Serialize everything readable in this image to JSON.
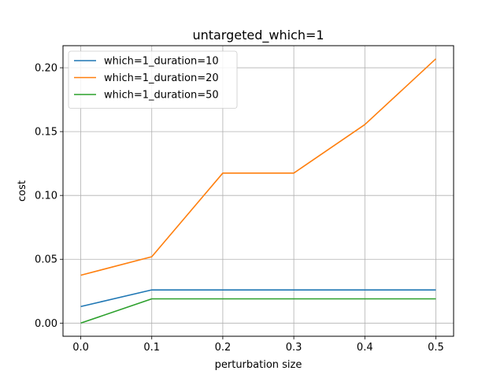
{
  "chart_data": {
    "type": "line",
    "title": "untargeted_which=1",
    "xlabel": "perturbation size",
    "ylabel": "cost",
    "x": [
      0.0,
      0.1,
      0.2,
      0.3,
      0.4,
      0.5
    ],
    "xlim": [
      -0.025,
      0.525
    ],
    "ylim": [
      -0.0103,
      0.2173
    ],
    "xticks": [
      0.0,
      0.1,
      0.2,
      0.3,
      0.4,
      0.5
    ],
    "xtick_labels": [
      "0.0",
      "0.1",
      "0.2",
      "0.3",
      "0.4",
      "0.5"
    ],
    "yticks": [
      0.0,
      0.05,
      0.1,
      0.15,
      0.2
    ],
    "ytick_labels": [
      "0.00",
      "0.05",
      "0.10",
      "0.15",
      "0.20"
    ],
    "grid": true,
    "legend_position": "upper-left",
    "series": [
      {
        "name": "which=1_duration=10",
        "color": "#1f77b4",
        "values": [
          0.013,
          0.026,
          0.026,
          0.026,
          0.026,
          0.026
        ]
      },
      {
        "name": "which=1_duration=20",
        "color": "#ff7f0e",
        "values": [
          0.0375,
          0.052,
          0.1175,
          0.1175,
          0.1555,
          0.207
        ]
      },
      {
        "name": "which=1_duration=50",
        "color": "#2ca02c",
        "values": [
          0.0,
          0.019,
          0.019,
          0.019,
          0.019,
          0.019
        ]
      }
    ]
  }
}
